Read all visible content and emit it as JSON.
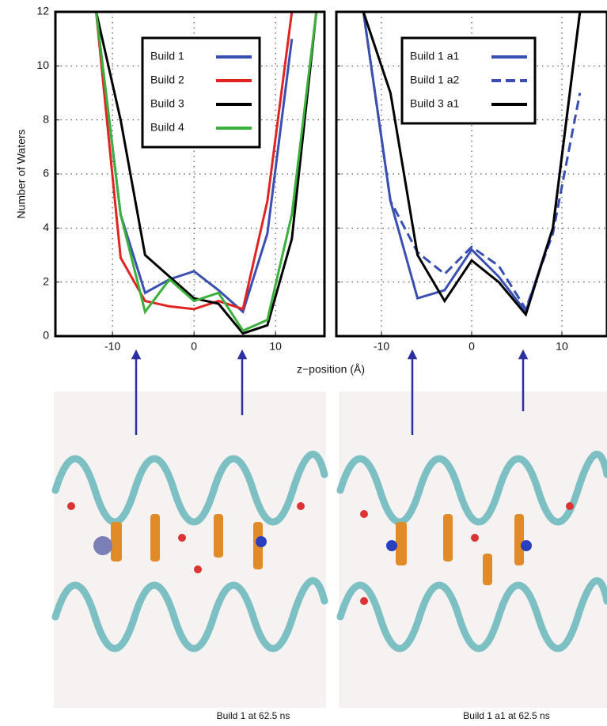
{
  "chart_data": [
    {
      "type": "line",
      "xlabel": "z−position (Å)",
      "ylabel": "Number of Waters",
      "x": [
        -12,
        -9,
        -6,
        -3,
        0,
        3,
        6,
        9,
        12,
        15
      ],
      "series": [
        {
          "name": "Build 1",
          "color": "#3a4fb0",
          "linestyle": "solid",
          "values": [
            12,
            4.5,
            1.6,
            2.1,
            2.4,
            1.7,
            0.9,
            3.8,
            11,
            null
          ]
        },
        {
          "name": "Build 2",
          "color": "#e02424",
          "linestyle": "solid",
          "values": [
            12,
            2.9,
            1.3,
            1.1,
            1.0,
            1.3,
            1.0,
            5,
            12,
            null
          ]
        },
        {
          "name": "Build 3",
          "color": "#000000",
          "linestyle": "solid",
          "values": [
            12,
            8,
            3,
            2.2,
            1.4,
            1.2,
            0.1,
            0.4,
            3.6,
            12
          ]
        },
        {
          "name": "Build 4",
          "color": "#3cb03c",
          "linestyle": "solid",
          "values": [
            12,
            4.5,
            0.9,
            2.1,
            1.3,
            1.6,
            0.2,
            0.6,
            4.5,
            12
          ]
        }
      ],
      "xlim": [
        -17,
        16
      ],
      "ylim": [
        0,
        12
      ],
      "xticks": [
        -10,
        0,
        10
      ],
      "yticks": [
        0,
        2,
        4,
        6,
        8,
        10,
        12
      ],
      "grid": true,
      "legend": "upper center",
      "show_ytick_labels": true
    },
    {
      "type": "line",
      "x": [
        -12,
        -9,
        -6,
        -3,
        0,
        3,
        6,
        9,
        12
      ],
      "series": [
        {
          "name": "Build 1 a1",
          "color": "#3a4fb0",
          "linestyle": "solid",
          "values": [
            12,
            5,
            1.4,
            1.7,
            3.2,
            2.2,
            0.9,
            4,
            12
          ]
        },
        {
          "name": "Build 1 a2",
          "color": "#3a4fb0",
          "linestyle": "dashed",
          "values": [
            12,
            5,
            3.1,
            2.3,
            3.3,
            2.6,
            1.0,
            3.8,
            9
          ]
        },
        {
          "name": "Build 3 a1",
          "color": "#000000",
          "linestyle": "solid",
          "values": [
            12,
            9,
            3,
            1.3,
            2.8,
            2.0,
            0.8,
            4,
            12
          ]
        }
      ],
      "xlim": [
        -15,
        15
      ],
      "ylim": [
        0,
        12
      ],
      "xticks": [
        -10,
        0,
        10
      ],
      "yticks": [
        0,
        2,
        4,
        6,
        8,
        10,
        12
      ],
      "grid": true,
      "legend": "upper center",
      "show_ytick_labels": false
    }
  ],
  "captions": [
    "Build 1 at 62.5 ns",
    "Build 1 a1 at 62.5 ns"
  ]
}
